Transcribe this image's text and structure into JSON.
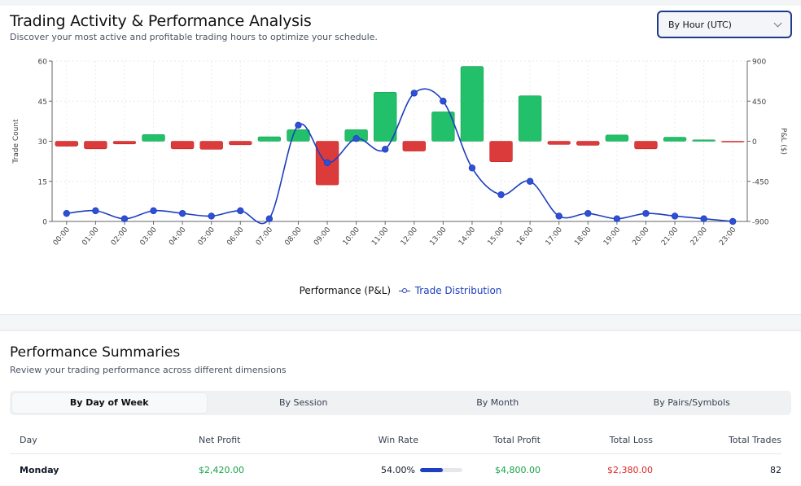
{
  "header": {
    "title": "Trading Activity & Performance Analysis",
    "subtitle": "Discover your most active and profitable trading hours to optimize your schedule.",
    "grouping_select": {
      "value": "By Hour (UTC)",
      "icon": "chevron-down-icon"
    }
  },
  "colors": {
    "profit": "#22c06a",
    "loss": "#dc3b3b",
    "line": "#1e3fbf",
    "dot": "#2f4fd6"
  },
  "chart_data": {
    "type": "bar+line",
    "title": "",
    "categories": [
      "00:00",
      "01:00",
      "02:00",
      "03:00",
      "04:00",
      "05:00",
      "06:00",
      "07:00",
      "08:00",
      "09:00",
      "10:00",
      "11:00",
      "12:00",
      "13:00",
      "14:00",
      "15:00",
      "16:00",
      "17:00",
      "18:00",
      "19:00",
      "20:00",
      "21:00",
      "22:00",
      "23:00"
    ],
    "series": [
      {
        "name": "Performance (P&L)",
        "type": "bar",
        "axis": "right",
        "values": [
          -55,
          -85,
          -30,
          75,
          -85,
          -90,
          -40,
          50,
          130,
          -490,
          130,
          550,
          -110,
          330,
          840,
          -230,
          510,
          -35,
          -45,
          70,
          -85,
          45,
          15,
          -5
        ]
      },
      {
        "name": "Trade Distribution",
        "type": "line",
        "axis": "left",
        "values": [
          3,
          4,
          1,
          4,
          3,
          2,
          4,
          1,
          36,
          22,
          31,
          27,
          48,
          45,
          20,
          10,
          15,
          2,
          3,
          1,
          3,
          2,
          1,
          0
        ]
      }
    ],
    "ylabel_left": "Trade Count",
    "ylabel_right": "P&L ($)",
    "ylim_left": [
      0,
      60
    ],
    "ylim_right": [
      -900,
      900
    ],
    "yticks_left": [
      "0",
      "15",
      "30",
      "45",
      "60"
    ],
    "yticks_right": [
      "-900",
      "-450",
      "0",
      "450",
      "900"
    ],
    "grid": true,
    "legend_position": "bottom-center"
  },
  "summaries": {
    "title": "Performance Summaries",
    "subtitle": "Review your trading performance across different dimensions",
    "tabs": [
      {
        "label": "By Day of Week",
        "active": true
      },
      {
        "label": "By Session",
        "active": false
      },
      {
        "label": "By Month",
        "active": false
      },
      {
        "label": "By Pairs/Symbols",
        "active": false
      }
    ],
    "columns": [
      "Day",
      "Net Profit",
      "Win Rate",
      "Total Profit",
      "Total Loss",
      "Total Trades"
    ],
    "rows": [
      {
        "day": "Monday",
        "net_profit": "$2,420.00",
        "win_rate": "54.00%",
        "win_rate_value": 54,
        "total_profit": "$4,800.00",
        "total_loss": "$2,380.00",
        "total_trades": "82"
      }
    ]
  }
}
